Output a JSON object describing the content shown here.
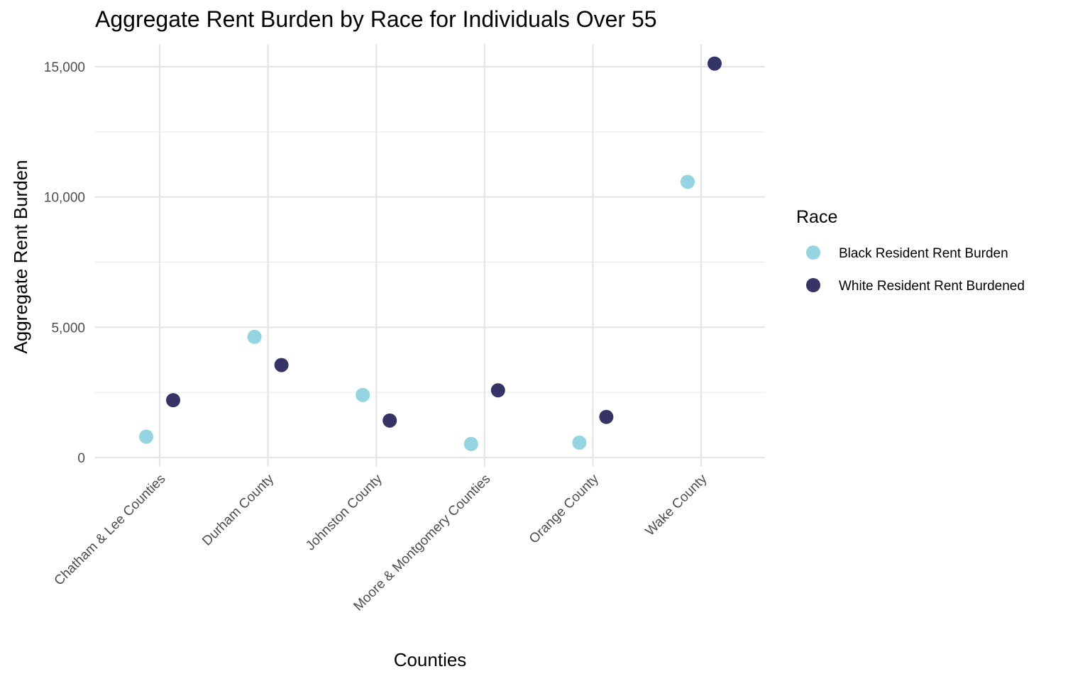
{
  "chart_data": {
    "type": "scatter",
    "title": "Aggregate Rent Burden by Race for Individuals Over 55",
    "xlabel": "Counties",
    "ylabel": "Aggregate Rent Burden",
    "categories": [
      "Chatham & Lee Counties",
      "Durham County",
      "Johnston County",
      "Moore & Montgomery Counties",
      "Orange County",
      "Wake County"
    ],
    "ylim": [
      -500,
      15850
    ],
    "yticks": [
      0,
      5000,
      10000,
      15000
    ],
    "ytick_labels": [
      "0",
      "5,000",
      "10,000",
      "15,000"
    ],
    "grid": true,
    "legend": {
      "title": "Race",
      "position": "right"
    },
    "series": [
      {
        "name": "Black Resident Rent Burden",
        "color": "#93d5e0",
        "values": [
          800,
          4630,
          2400,
          520,
          570,
          10580
        ]
      },
      {
        "name": "White Resident Rent Burdened",
        "color": "#363466",
        "values": [
          2200,
          3550,
          1420,
          2580,
          1560,
          15120
        ]
      }
    ]
  }
}
